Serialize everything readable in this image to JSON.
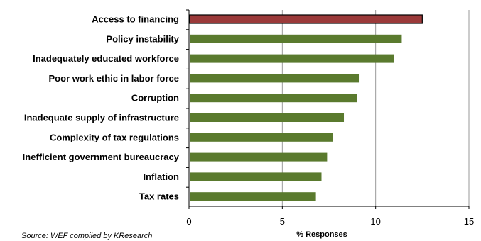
{
  "chart_data": {
    "type": "bar",
    "orientation": "horizontal",
    "categories": [
      "Access to financing",
      "Policy instability",
      "Inadequately educated workforce",
      "Poor work ethic in labor force",
      "Corruption",
      "Inadequate supply of infrastructure",
      "Complexity of tax regulations",
      "Inefficient government bureaucracy",
      "Inflation",
      "Tax rates"
    ],
    "values": [
      12.5,
      11.4,
      11.0,
      9.1,
      9.0,
      8.3,
      7.7,
      7.4,
      7.1,
      6.8
    ],
    "xlabel": "% Responses",
    "ylabel": "",
    "xlim": [
      0,
      15
    ],
    "xticks": [
      0,
      5,
      10,
      15
    ],
    "xtick_labels": [
      "0",
      "5",
      "10",
      "15"
    ],
    "grid": "vertical",
    "colors": {
      "highlight": "#9b3a3a",
      "default": "#5a7a2e",
      "highlight_outline": "#000000",
      "grid": "#9a9a9a"
    },
    "highlighted_category": "Access to financing"
  },
  "footer": {
    "source": "Source: WEF compiled by KResearch"
  }
}
